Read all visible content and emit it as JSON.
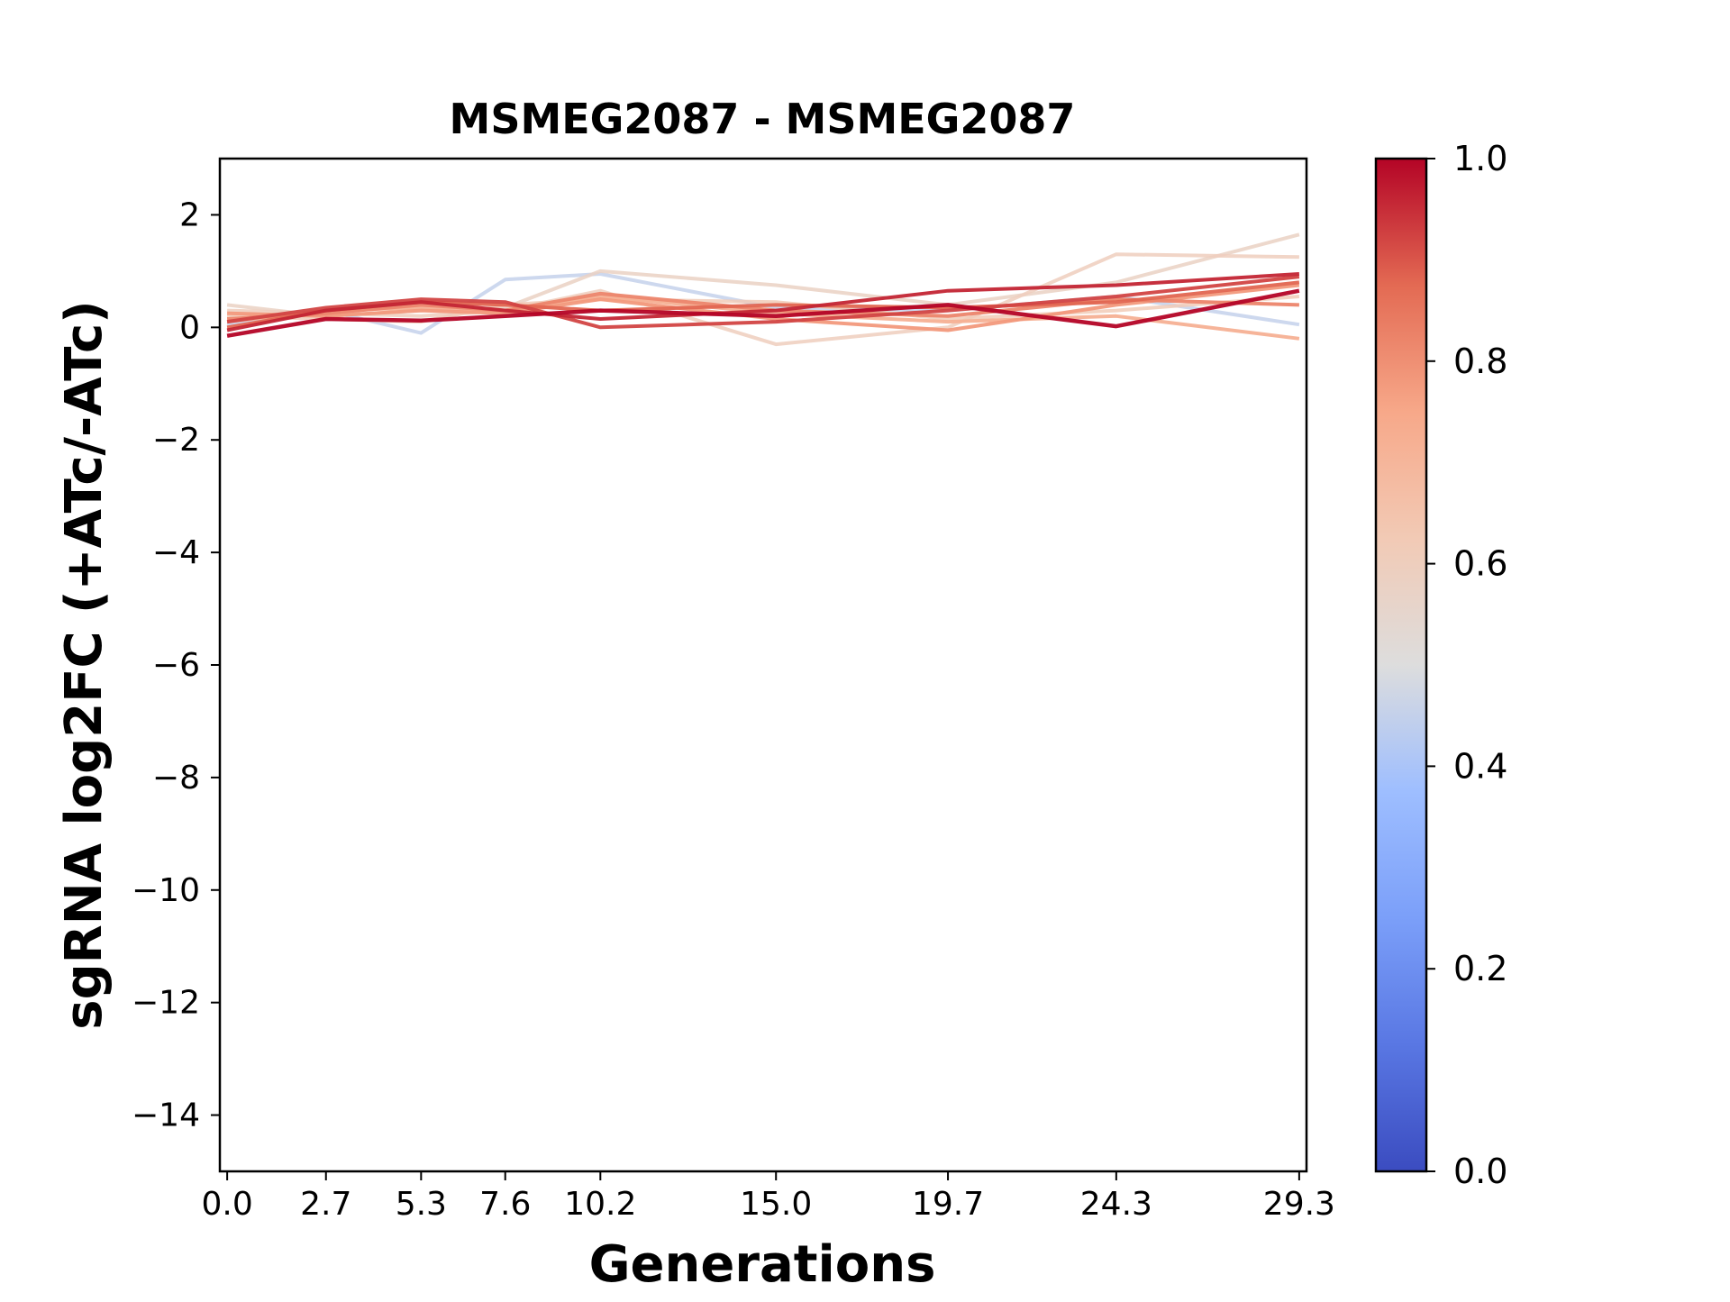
{
  "chart_data": {
    "type": "line",
    "title": "MSMEG2087 - MSMEG2087",
    "xlabel": "Generations",
    "ylabel": "sgRNA log2FC (+ATc/-ATc)",
    "x": [
      0.0,
      2.7,
      5.3,
      7.6,
      10.2,
      15.0,
      19.7,
      24.3,
      29.3
    ],
    "x_tick_labels": [
      "0.0",
      "2.7",
      "5.3",
      "7.6",
      "10.2",
      "15.0",
      "19.7",
      "24.3",
      "29.3"
    ],
    "xlim": [
      -0.2,
      29.5
    ],
    "ylim": [
      -15,
      3
    ],
    "y_ticks": [
      2,
      0,
      -2,
      -4,
      -6,
      -8,
      -10,
      -12,
      -14
    ],
    "y_tick_labels": [
      "2",
      "0",
      "−2",
      "−4",
      "−6",
      "−8",
      "−10",
      "−12",
      "−14"
    ],
    "grid": false,
    "colorbar": {
      "colormap": "coolwarm",
      "range": [
        0.0,
        1.0
      ],
      "ticks": [
        0.0,
        0.2,
        0.4,
        0.6,
        0.8,
        1.0
      ],
      "tick_labels": [
        "0.0",
        "0.2",
        "0.4",
        "0.6",
        "0.8",
        "1.0"
      ]
    },
    "series": [
      {
        "color_value": 0.45,
        "values": [
          0.05,
          0.3,
          -0.1,
          0.85,
          0.95,
          0.35,
          0.3,
          0.55,
          0.05
        ]
      },
      {
        "color_value": 0.58,
        "values": [
          0.4,
          0.2,
          0.3,
          0.35,
          1.0,
          0.75,
          0.4,
          0.8,
          1.65
        ]
      },
      {
        "color_value": 0.6,
        "values": [
          0.3,
          0.25,
          0.2,
          0.3,
          0.65,
          -0.3,
          0.0,
          1.3,
          1.25
        ]
      },
      {
        "color_value": 0.62,
        "values": [
          0.2,
          0.15,
          0.1,
          0.4,
          0.5,
          0.45,
          0.15,
          0.3,
          0.55
        ]
      },
      {
        "color_value": 0.72,
        "values": [
          0.1,
          0.3,
          0.35,
          0.3,
          0.55,
          0.25,
          0.1,
          0.2,
          -0.2
        ]
      },
      {
        "color_value": 0.78,
        "values": [
          0.25,
          0.2,
          0.3,
          0.25,
          0.5,
          0.15,
          -0.05,
          0.4,
          0.75
        ]
      },
      {
        "color_value": 0.82,
        "values": [
          0.15,
          0.25,
          0.4,
          0.3,
          0.6,
          0.3,
          0.2,
          0.5,
          0.4
        ]
      },
      {
        "color_value": 0.88,
        "values": [
          0.0,
          0.3,
          0.45,
          0.4,
          0.3,
          0.4,
          0.35,
          0.45,
          0.8
        ]
      },
      {
        "color_value": 0.92,
        "values": [
          0.1,
          0.35,
          0.5,
          0.45,
          0.0,
          0.1,
          0.3,
          0.55,
          0.9
        ]
      },
      {
        "color_value": 0.96,
        "values": [
          -0.05,
          0.3,
          0.45,
          0.3,
          0.15,
          0.3,
          0.65,
          0.75,
          0.95
        ]
      },
      {
        "color_value": 1.0,
        "values": [
          -0.15,
          0.15,
          0.12,
          0.2,
          0.3,
          0.2,
          0.4,
          0.02,
          0.65
        ]
      }
    ]
  }
}
